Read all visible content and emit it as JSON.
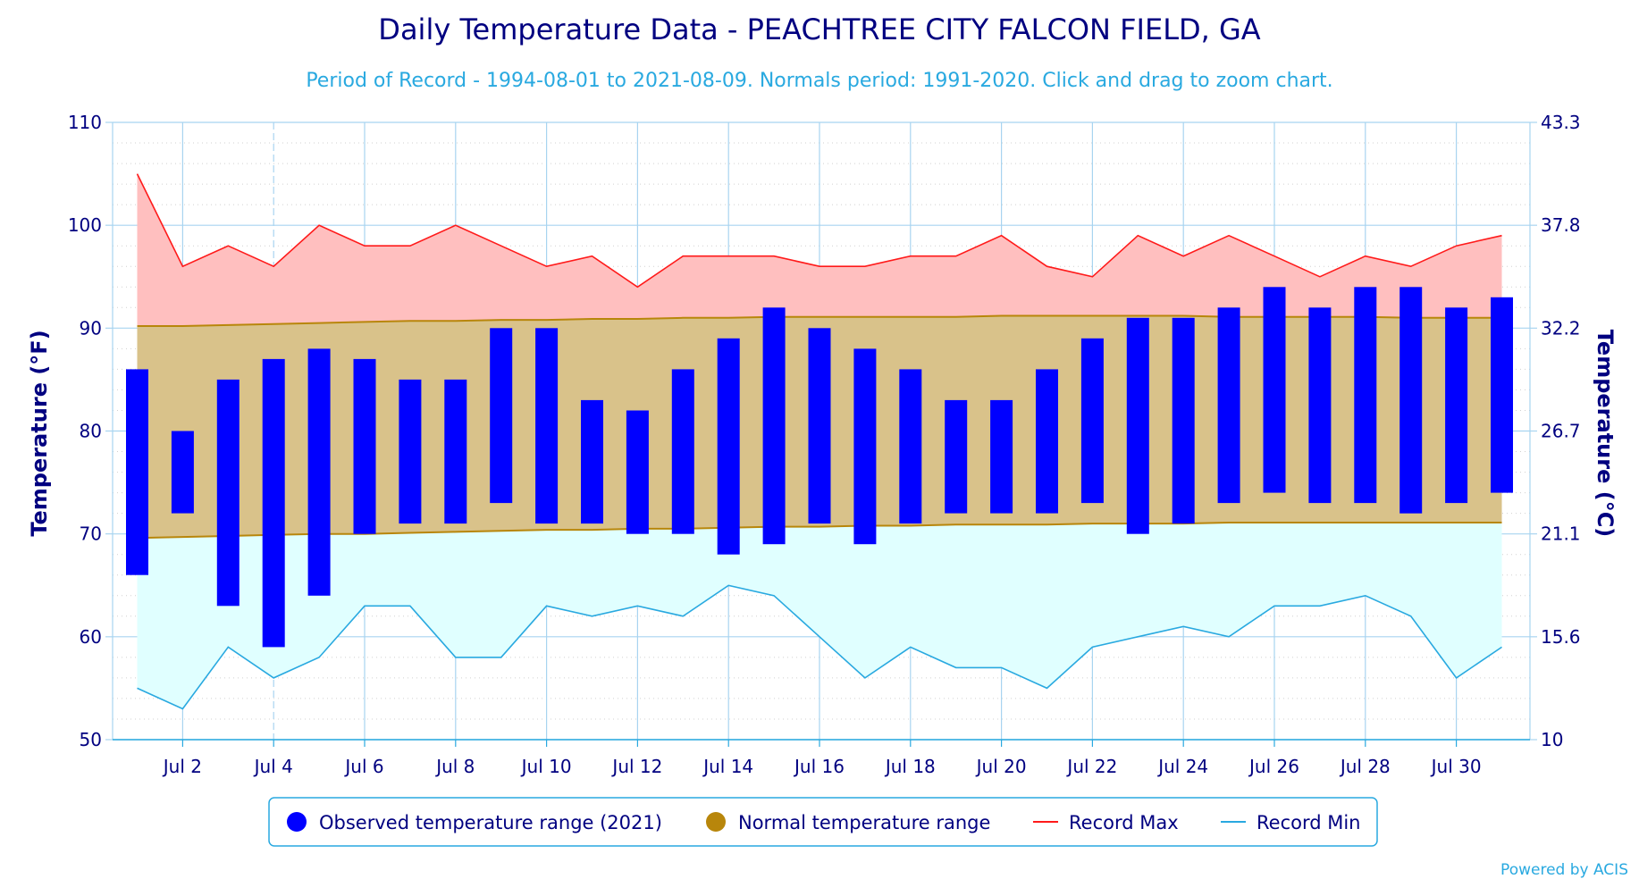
{
  "chart_data": {
    "type": "bar",
    "title": "Daily Temperature Data - PEACHTREE CITY FALCON FIELD, GA",
    "subtitle": "Period of Record - 1994-08-01 to 2021-08-09. Normals period: 1991-2020. Click and drag to zoom chart.",
    "ylabel": "Temperature (°F)",
    "ylabel_right": "Temperature (°C)",
    "ylim": [
      50,
      110
    ],
    "y_ticks": [
      50,
      60,
      70,
      80,
      90,
      100,
      110
    ],
    "y_ticks_right": [
      "10",
      "15.6",
      "21.1",
      "26.7",
      "32.2",
      "37.8",
      "43.3"
    ],
    "x_ticks": [
      {
        "day": 2,
        "label": "Jul 2"
      },
      {
        "day": 4,
        "label": "Jul 4"
      },
      {
        "day": 6,
        "label": "Jul 6"
      },
      {
        "day": 8,
        "label": "Jul 8"
      },
      {
        "day": 10,
        "label": "Jul 10"
      },
      {
        "day": 12,
        "label": "Jul 12"
      },
      {
        "day": 14,
        "label": "Jul 14"
      },
      {
        "day": 16,
        "label": "Jul 16"
      },
      {
        "day": 18,
        "label": "Jul 18"
      },
      {
        "day": 20,
        "label": "Jul 20"
      },
      {
        "day": 22,
        "label": "Jul 22"
      },
      {
        "day": 24,
        "label": "Jul 24"
      },
      {
        "day": 26,
        "label": "Jul 26"
      },
      {
        "day": 28,
        "label": "Jul 28"
      },
      {
        "day": 30,
        "label": "Jul 30"
      }
    ],
    "days": [
      1,
      2,
      3,
      4,
      5,
      6,
      7,
      8,
      9,
      10,
      11,
      12,
      13,
      14,
      15,
      16,
      17,
      18,
      19,
      20,
      21,
      22,
      23,
      24,
      25,
      26,
      27,
      28,
      29,
      30,
      31
    ],
    "series": [
      {
        "name": "Observed temperature range (2021)",
        "kind": "range-bar",
        "color": "#0000ff",
        "low": [
          66,
          72,
          63,
          59,
          64,
          70,
          71,
          71,
          73,
          71,
          71,
          70,
          70,
          68,
          69,
          71,
          69,
          71,
          72,
          72,
          72,
          73,
          70,
          71,
          73,
          74,
          73,
          73,
          72,
          73,
          74
        ],
        "high": [
          86,
          80,
          85,
          87,
          88,
          87,
          85,
          85,
          90,
          90,
          83,
          82,
          86,
          89,
          92,
          90,
          88,
          86,
          83,
          83,
          86,
          89,
          91,
          91,
          92,
          94,
          92,
          94,
          94,
          92,
          93
        ]
      },
      {
        "name": "Normal temperature range",
        "kind": "range-area",
        "color": "#b8860b",
        "fill": "#d9c28a",
        "low": [
          69.6,
          69.7,
          69.8,
          69.9,
          70.0,
          70.0,
          70.1,
          70.2,
          70.3,
          70.4,
          70.4,
          70.5,
          70.5,
          70.6,
          70.7,
          70.7,
          70.8,
          70.8,
          70.9,
          70.9,
          70.9,
          71.0,
          71.0,
          71.0,
          71.1,
          71.1,
          71.1,
          71.1,
          71.1,
          71.1,
          71.1
        ],
        "high": [
          90.2,
          90.2,
          90.3,
          90.4,
          90.5,
          90.6,
          90.7,
          90.7,
          90.8,
          90.8,
          90.9,
          90.9,
          91.0,
          91.0,
          91.1,
          91.1,
          91.1,
          91.1,
          91.1,
          91.2,
          91.2,
          91.2,
          91.2,
          91.2,
          91.1,
          91.1,
          91.1,
          91.1,
          91.0,
          91.0,
          91.0
        ]
      },
      {
        "name": "Record Max",
        "kind": "line",
        "color": "#ff1a1a",
        "fill": "#ffbfbf",
        "values": [
          105,
          96,
          98,
          96,
          100,
          98,
          98,
          100,
          98,
          96,
          97,
          94,
          97,
          97,
          97,
          96,
          96,
          97,
          97,
          99,
          96,
          95,
          99,
          97,
          99,
          97,
          95,
          97,
          96,
          98,
          99
        ]
      },
      {
        "name": "Record Min",
        "kind": "line",
        "color": "#29a9e0",
        "fill": "#e0ffff",
        "values": [
          55,
          53,
          59,
          56,
          58,
          63,
          63,
          58,
          58,
          63,
          62,
          63,
          62,
          65,
          64,
          60,
          56,
          59,
          57,
          57,
          55,
          59,
          60,
          61,
          60,
          63,
          63,
          64,
          62,
          56,
          59
        ]
      }
    ],
    "legend_position": "bottom-center",
    "grid": true
  },
  "legend": [
    {
      "label": "Observed temperature range (2021)",
      "symbol": "circle",
      "color": "#0000ff"
    },
    {
      "label": "Normal temperature range",
      "symbol": "circle",
      "color": "#b8860b"
    },
    {
      "label": "Record Max",
      "symbol": "line",
      "color": "#ff1a1a"
    },
    {
      "label": "Record Min",
      "symbol": "line",
      "color": "#29a9e0"
    }
  ],
  "credit": "Powered by ACIS"
}
